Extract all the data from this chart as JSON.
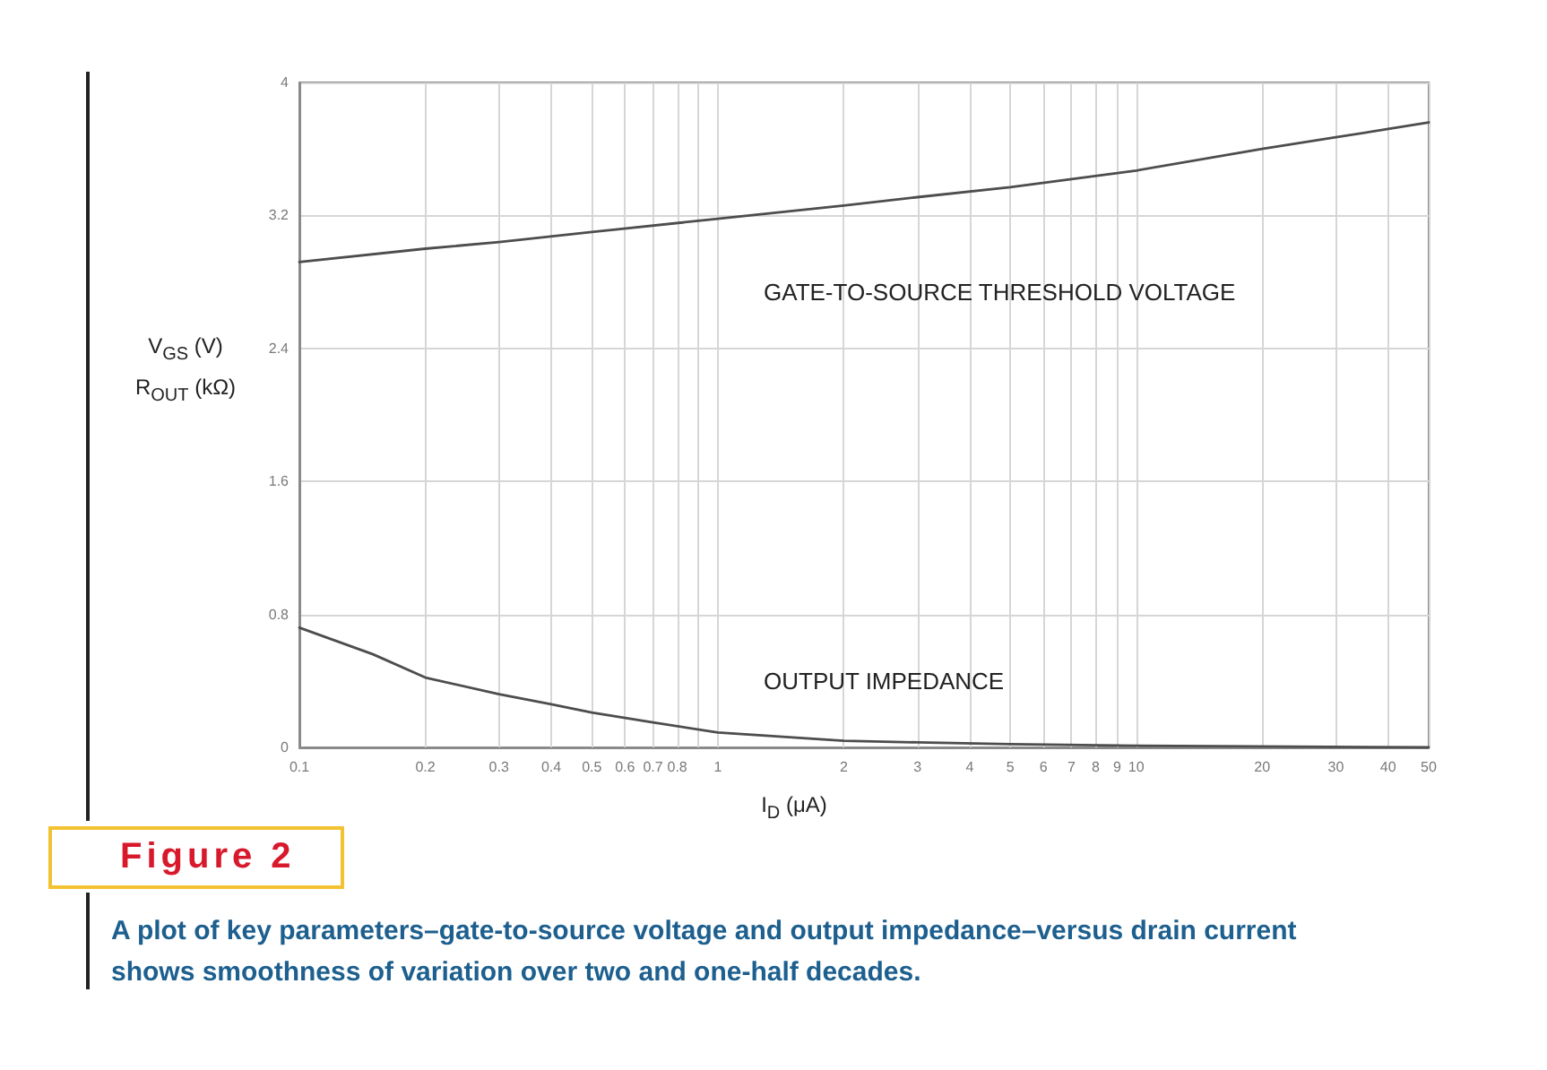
{
  "chart_data": {
    "type": "line",
    "title": "Figure 2",
    "subtitle": "A plot of key parameters–gate-to-source voltage and output impedance–versus drain current shows smoothness of variation over two and one-half decades.",
    "xlabel": "I$_{D}$ (μA)",
    "ylabel": "V$_{GS}$ (V)\nR$_{OUT}$ (kΩ)",
    "series": [
      {
        "x": [
          0.1,
          0.2,
          0.3,
          0.5,
          1,
          2,
          3,
          5,
          10,
          20,
          30,
          40,
          50
        ],
        "values": [
          2.92,
          3.0,
          3.04,
          3.1,
          3.18,
          3.26,
          3.31,
          3.37,
          3.47,
          3.6,
          3.67,
          3.72,
          3.76
        ],
        "color": "#4d4d4d"
      },
      {
        "x": [
          0.1,
          0.15,
          0.2,
          0.3,
          0.4,
          0.5,
          0.7,
          1,
          2,
          3,
          5,
          10,
          50
        ],
        "values": [
          0.72,
          0.56,
          0.42,
          0.32,
          0.26,
          0.21,
          0.15,
          0.09,
          0.04,
          0.03,
          0.02,
          0.01,
          0
        ],
        "color": "#4d4d4d"
      }
    ],
    "xlim": [
      0.1,
      50
    ],
    "xticks": [
      0.1,
      0.2,
      0.3,
      0.4,
      0.5,
      0.6,
      0.7,
      0.8,
      {
        "value": 0.9,
        "label": null
      },
      1,
      2,
      3,
      4,
      5,
      6,
      7,
      8,
      9,
      10,
      20,
      30,
      40,
      50
    ],
    "ylim": [
      0,
      4
    ],
    "yticks": [
      0,
      0.8,
      1.6,
      2.4,
      3.2,
      4
    ],
    "log": "x",
    "grid": true,
    "marker": "none",
    "line_style": "solid",
    "annotations": [
      "GATE-TO-SOURCE THRESHOLD VOLTAGE",
      "OUTPUT IMPEDANCE"
    ]
  }
}
